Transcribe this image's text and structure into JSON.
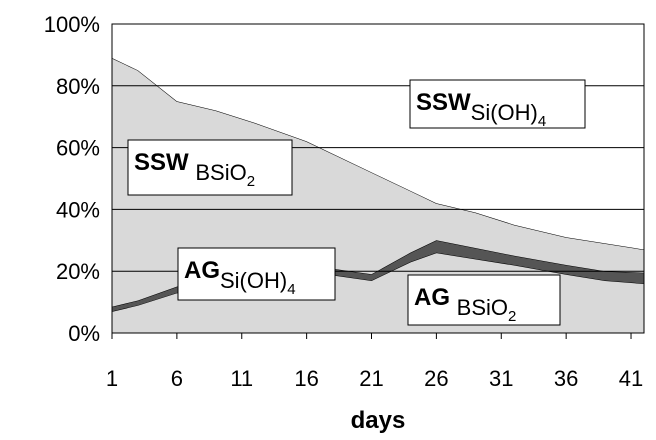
{
  "chart_data": {
    "type": "stacked-area",
    "x": [
      1,
      3,
      6,
      9,
      12,
      16,
      21,
      24,
      26,
      29,
      32,
      36,
      39,
      42
    ],
    "xlim": [
      1,
      42
    ],
    "xticks": [
      1,
      6,
      11,
      16,
      21,
      26,
      31,
      36,
      41
    ],
    "ylim": [
      0,
      100
    ],
    "yticks": [
      {
        "value": 0,
        "label": "0%"
      },
      {
        "value": 20,
        "label": "20%"
      },
      {
        "value": 40,
        "label": "40%"
      },
      {
        "value": 60,
        "label": "60%"
      },
      {
        "value": 80,
        "label": "80%"
      },
      {
        "value": 100,
        "label": "100%"
      }
    ],
    "xlabel": "days",
    "grid": true,
    "series": [
      {
        "label_parts": [
          "AG",
          "Si(OH)",
          "4"
        ],
        "color": "#d9d9d9",
        "values": [
          7,
          9,
          13,
          16,
          18,
          20,
          17,
          23,
          26,
          24,
          22,
          19,
          17,
          16
        ]
      },
      {
        "label_parts": [
          "AG ",
          "BSiO",
          "2"
        ],
        "color": "#555555",
        "values": [
          1.5,
          1.5,
          2,
          2,
          2,
          2,
          2,
          3,
          4,
          3.5,
          3,
          3,
          3,
          3.5
        ]
      },
      {
        "label_parts": [
          "SSW ",
          "BSiO",
          "2"
        ],
        "color": "#d9d9d9",
        "values": [
          80.5,
          74.5,
          60,
          54,
          48,
          40,
          33,
          20,
          12,
          11.5,
          10,
          9,
          9,
          7.5
        ]
      },
      {
        "label_parts": [
          "SSW",
          "Si(OH)",
          "4"
        ],
        "color": "#ffffff",
        "values": [
          11,
          15,
          25,
          28,
          32,
          38,
          48,
          54,
          58,
          61,
          65,
          69,
          71,
          73
        ]
      }
    ]
  }
}
